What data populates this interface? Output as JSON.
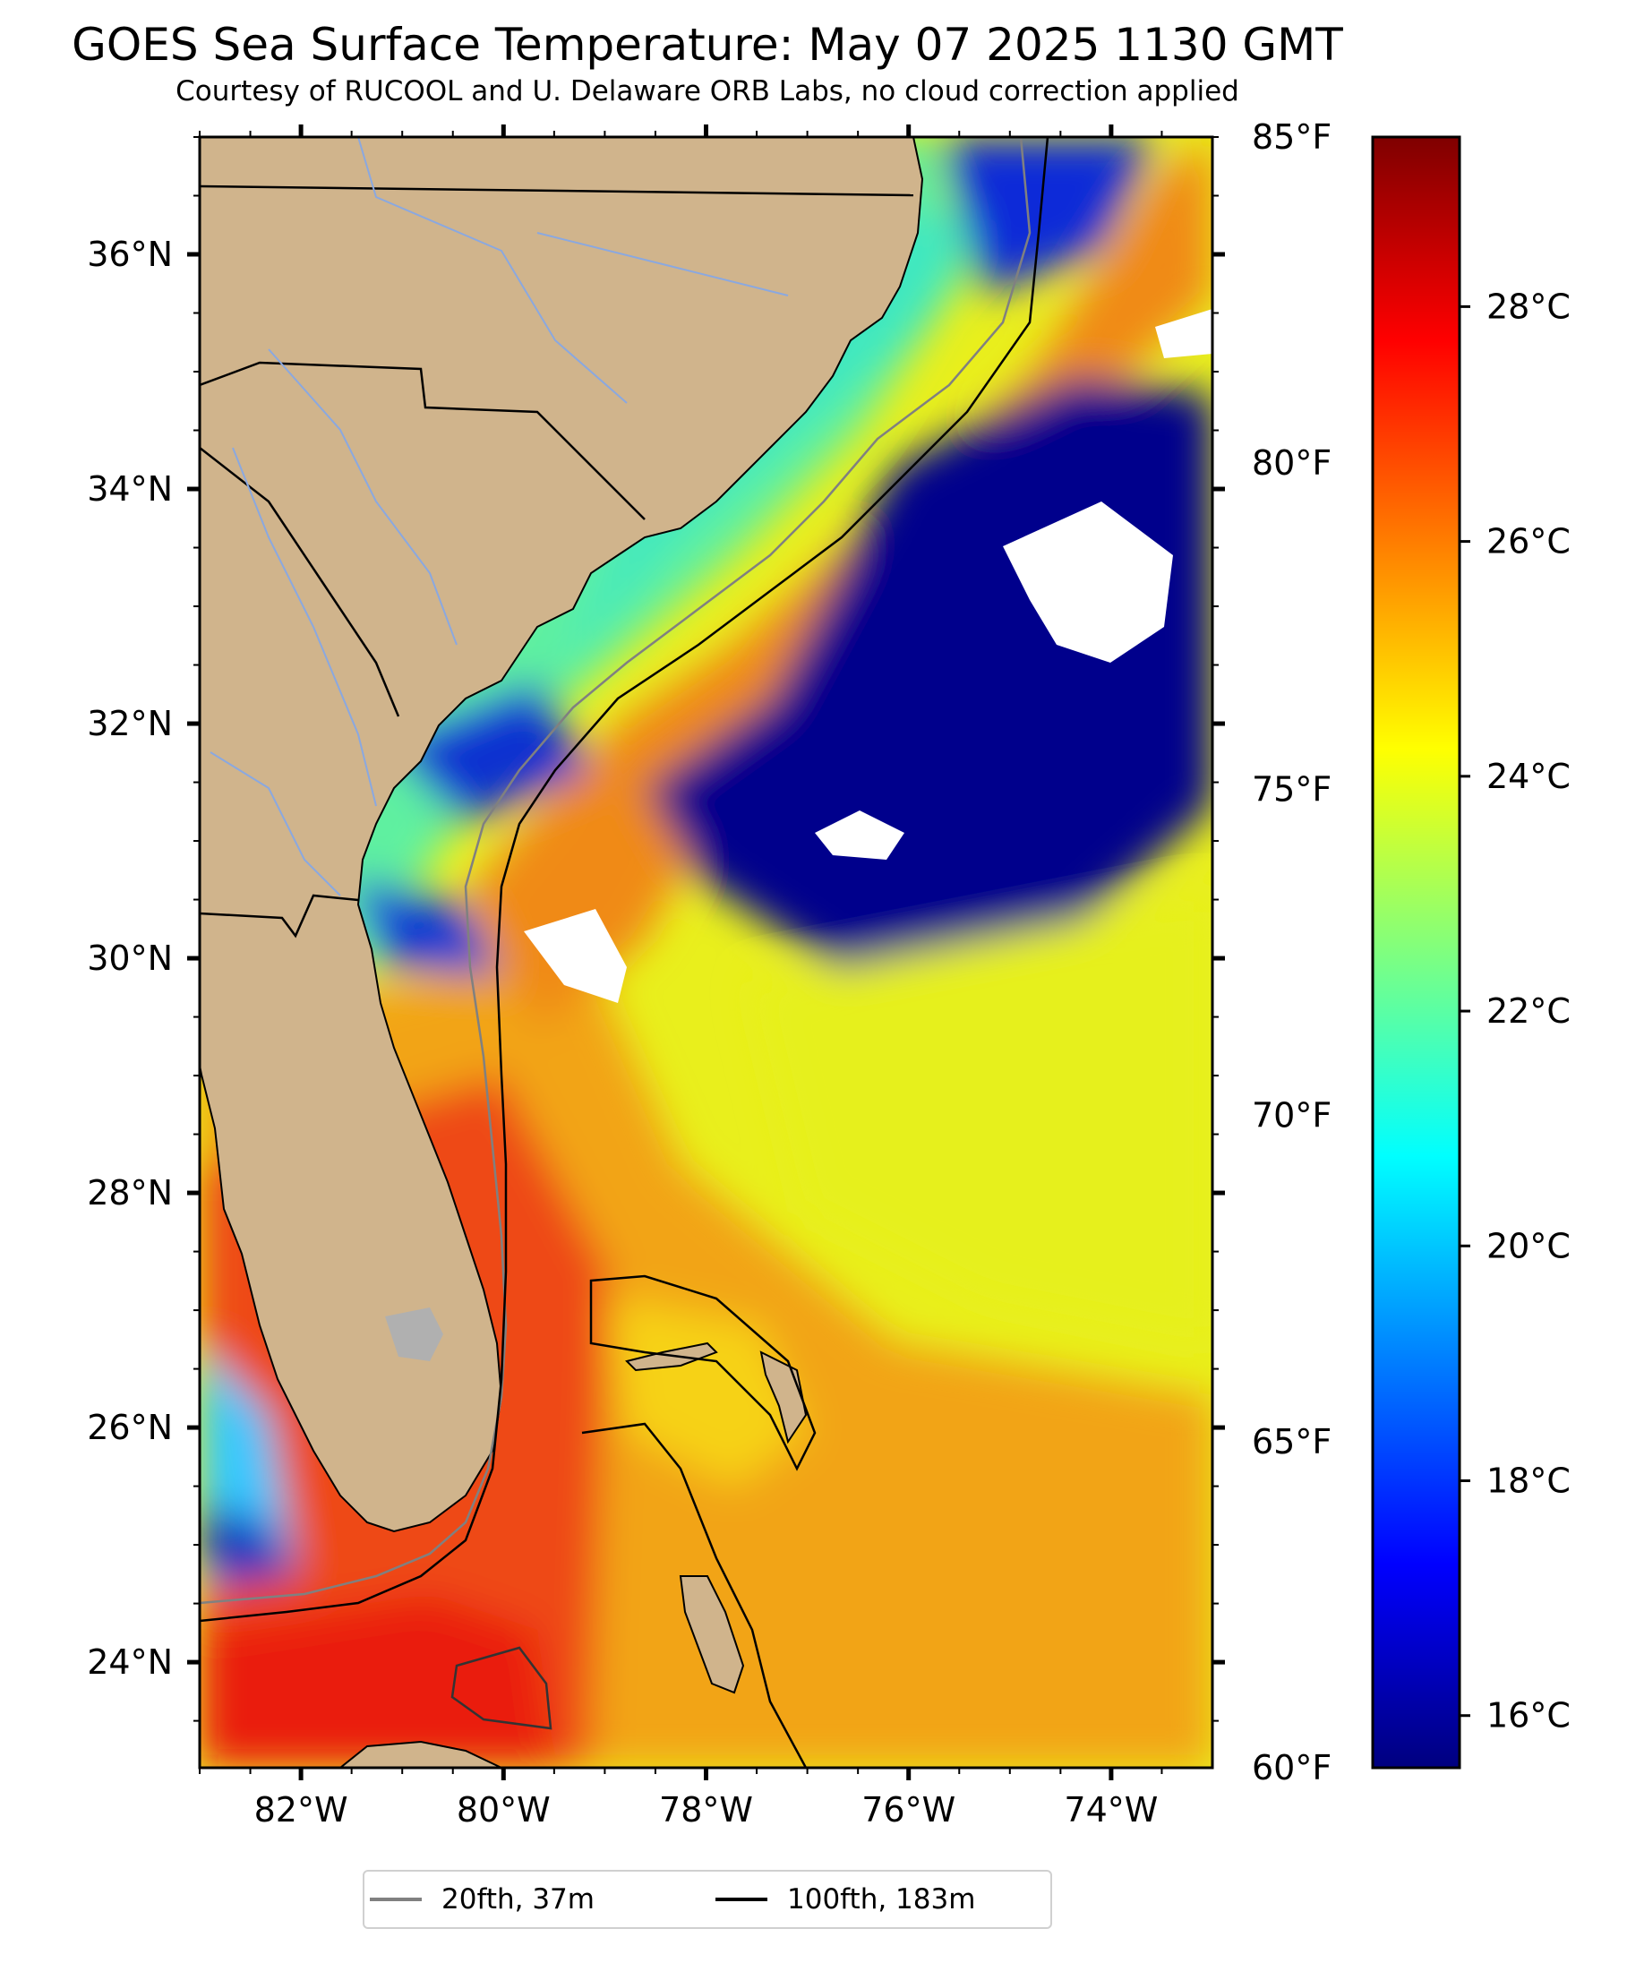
{
  "header": {
    "title": "GOES Sea Surface Temperature: May 07 2025 1130 GMT",
    "subtitle": "Courtesy of RUCOOL and U. Delaware ORB Labs, no cloud correction applied"
  },
  "map": {
    "extent": {
      "lon": [
        -83,
        -73
      ],
      "lat": [
        23.1,
        37.0
      ]
    },
    "lon_labels": [
      {
        "lon": -82,
        "label": "82°W"
      },
      {
        "lon": -80,
        "label": "80°W"
      },
      {
        "lon": -78,
        "label": "78°W"
      },
      {
        "lon": -76,
        "label": "76°W"
      },
      {
        "lon": -74,
        "label": "74°W"
      }
    ],
    "lat_labels": [
      {
        "lat": 24,
        "label": "24°N"
      },
      {
        "lat": 26,
        "label": "26°N"
      },
      {
        "lat": 28,
        "label": "28°N"
      },
      {
        "lat": 30,
        "label": "30°N"
      },
      {
        "lat": 32,
        "label": "32°N"
      },
      {
        "lat": 34,
        "label": "34°N"
      },
      {
        "lat": 36,
        "label": "36°N"
      }
    ],
    "colors": {
      "land": "#d0b48c",
      "river": "#8aa8e0",
      "border": "#000000",
      "cloud_mask": "#ffffff",
      "inland_water": "#b0b0b0",
      "isobath_20fth": "#808080",
      "isobath_100fth": "#000000"
    }
  },
  "fahrenheit_scale": {
    "range": [
      60,
      85
    ],
    "ticks": [
      {
        "value": 60,
        "label": "60°F"
      },
      {
        "value": 65,
        "label": "65°F"
      },
      {
        "value": 70,
        "label": "70°F"
      },
      {
        "value": 75,
        "label": "75°F"
      },
      {
        "value": 80,
        "label": "80°F"
      },
      {
        "value": 85,
        "label": "85°F"
      }
    ]
  },
  "colorbar": {
    "colormap": "jet",
    "range_f": [
      60,
      85
    ],
    "ticks_c": [
      {
        "value": 16,
        "label": "16°C"
      },
      {
        "value": 18,
        "label": "18°C"
      },
      {
        "value": 20,
        "label": "20°C"
      },
      {
        "value": 22,
        "label": "22°C"
      },
      {
        "value": 24,
        "label": "24°C"
      },
      {
        "value": 26,
        "label": "26°C"
      },
      {
        "value": 28,
        "label": "28°C"
      }
    ],
    "stops": [
      "#00007f",
      "#0000ff",
      "#007fff",
      "#00ffff",
      "#7fff7f",
      "#ffff00",
      "#ff7f00",
      "#ff0000",
      "#7f0000"
    ]
  },
  "legend": {
    "items": [
      {
        "label": "20fth, 37m",
        "color": "#808080"
      },
      {
        "label": "100fth, 183m",
        "color": "#000000"
      }
    ]
  }
}
